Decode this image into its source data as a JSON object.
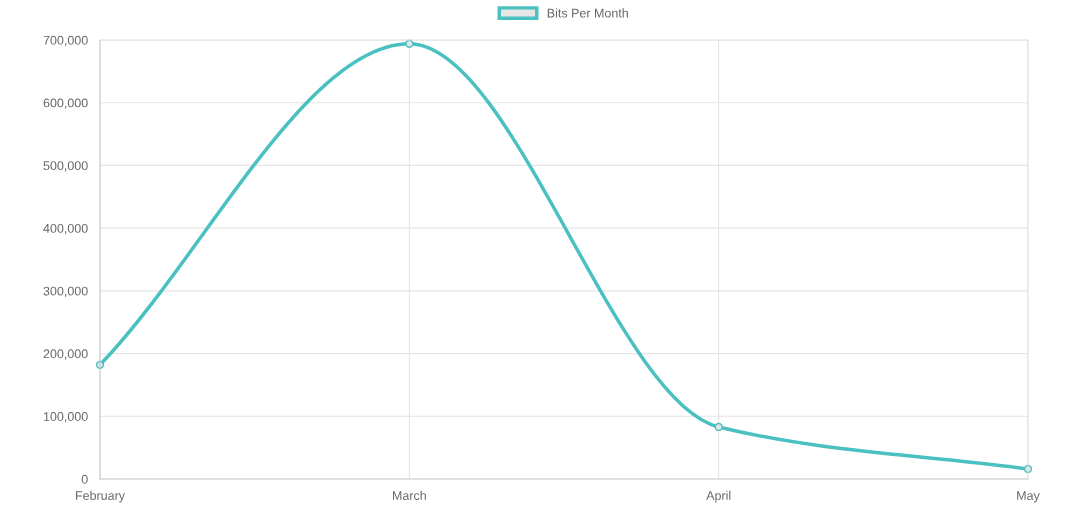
{
  "chart_data": {
    "type": "line",
    "categories": [
      "February",
      "March",
      "April",
      "May"
    ],
    "series": [
      {
        "name": "Bits Per Month",
        "color": "#4bc0c0",
        "values": [
          182000,
          694000,
          83000,
          16000
        ]
      }
    ],
    "ylim": [
      0,
      700000
    ],
    "yticks": [
      {
        "value": 0,
        "label": "0"
      },
      {
        "value": 100000,
        "label": "100,000"
      },
      {
        "value": 200000,
        "label": "200,000"
      },
      {
        "value": 300000,
        "label": "300,000"
      },
      {
        "value": 400000,
        "label": "400,000"
      },
      {
        "value": 500000,
        "label": "500,000"
      },
      {
        "value": 600000,
        "label": "600,000"
      },
      {
        "value": 700000,
        "label": "700,000"
      }
    ],
    "grid": true,
    "legend": "top",
    "marker": "circle",
    "line_style": "solid"
  }
}
